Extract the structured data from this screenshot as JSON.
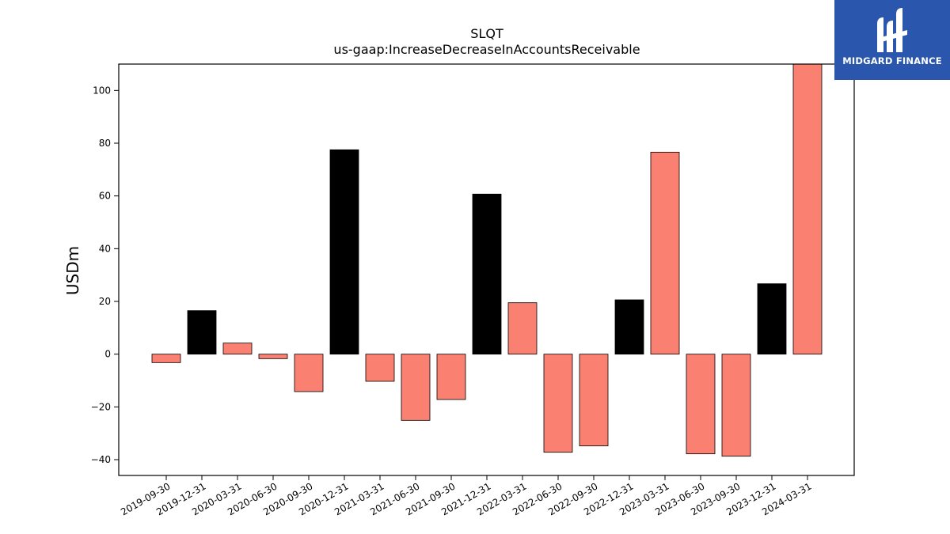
{
  "chart_data": {
    "type": "bar",
    "title": "SLQT",
    "subtitle": "us-gaap:IncreaseDecreaseInAccountsReceivable",
    "xlabel": "",
    "ylabel": "USDm",
    "ylim": [
      -46,
      110
    ],
    "yticks": [
      -40,
      -20,
      0,
      20,
      40,
      60,
      80,
      100
    ],
    "ytick_labels": [
      "−40",
      "−20",
      "0",
      "20",
      "40",
      "60",
      "80",
      "100"
    ],
    "grid": false,
    "categories": [
      "2019-09-30",
      "2019-12-31",
      "2020-03-31",
      "2020-06-30",
      "2020-09-30",
      "2020-12-31",
      "2021-03-31",
      "2021-06-30",
      "2021-09-30",
      "2021-12-31",
      "2022-03-31",
      "2022-06-30",
      "2022-09-30",
      "2022-12-31",
      "2023-03-31",
      "2023-06-30",
      "2023-09-30",
      "2023-12-31",
      "2024-03-31"
    ],
    "values": [
      -3.2,
      16.5,
      4.2,
      -1.7,
      -14.2,
      77.5,
      -10.3,
      -25.1,
      -17.2,
      60.7,
      19.5,
      -37.2,
      -34.8,
      20.6,
      76.6,
      -37.8,
      -38.7,
      26.7,
      110
    ],
    "bar_colors": [
      "#fa8072",
      "#000000",
      "#fa8072",
      "#fa8072",
      "#fa8072",
      "#000000",
      "#fa8072",
      "#fa8072",
      "#fa8072",
      "#000000",
      "#fa8072",
      "#fa8072",
      "#fa8072",
      "#000000",
      "#fa8072",
      "#fa8072",
      "#fa8072",
      "#000000",
      "#fa8072"
    ]
  },
  "logo": {
    "text": "MIDGARD FINANCE",
    "background": "#2a57ad",
    "icon": "midgard-logo-icon"
  }
}
